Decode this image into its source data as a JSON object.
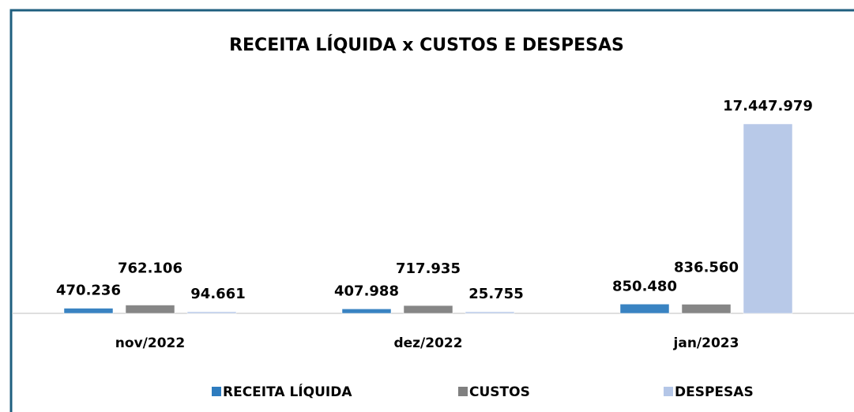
{
  "chart_data": {
    "type": "bar",
    "title": "RECEITA LÍQUIDA x CUSTOS E DESPESAS",
    "categories": [
      "nov/2022",
      "dez/2022",
      "jan/2023"
    ],
    "series": [
      {
        "name": "RECEITA LÍQUIDA",
        "color": "#2e7cbf",
        "values": [
          470236,
          407988,
          850480
        ],
        "value_labels": [
          "470.236",
          "407.988",
          "850.480"
        ]
      },
      {
        "name": "CUSTOS",
        "color": "#808080",
        "values": [
          762106,
          717935,
          836560
        ],
        "value_labels": [
          "762.106",
          "717.935",
          "836.560"
        ]
      },
      {
        "name": "DESPESAS",
        "color": "#b4c6e7",
        "values": [
          94661,
          25755,
          17447979
        ],
        "value_labels": [
          "94.661",
          "25.755",
          "17.447.979"
        ]
      }
    ],
    "legend": "bottom"
  }
}
